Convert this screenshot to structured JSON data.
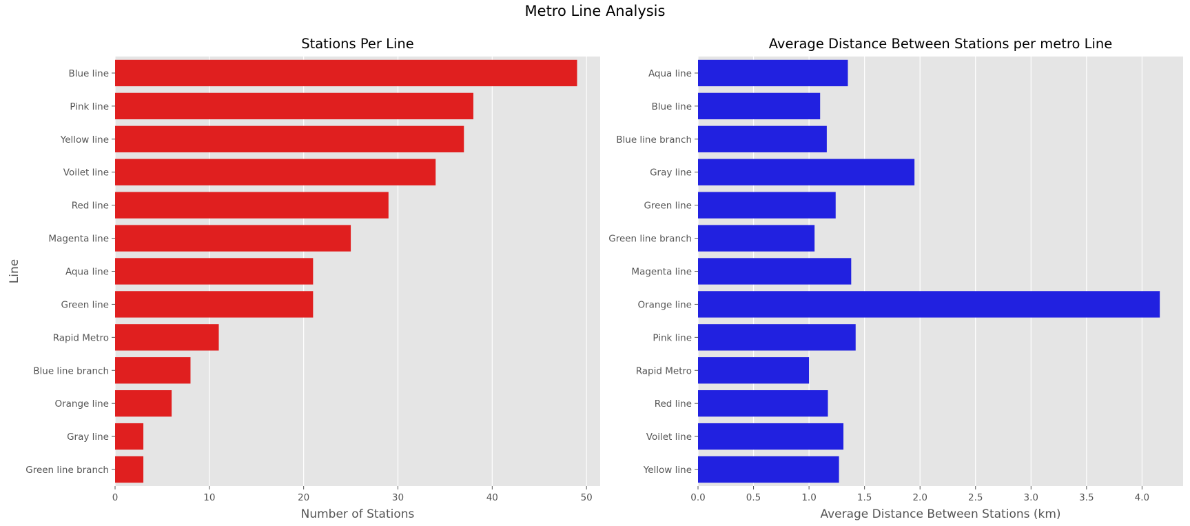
{
  "figure": {
    "title": "Metro Line Analysis",
    "background": "#ffffff",
    "axes_facecolor": "#e5e5e5",
    "grid_color": "#ffffff",
    "tick_color": "#555555",
    "label_color": "#555555"
  },
  "chart_data": [
    {
      "type": "bar",
      "orientation": "horizontal",
      "title": "Stations Per Line",
      "xlabel": "Number of Stations",
      "ylabel": "Line",
      "color": "#e01f1f",
      "categories": [
        "Blue line",
        "Pink line",
        "Yellow line",
        "Voilet line",
        "Red line",
        "Magenta line",
        "Aqua line",
        "Green line",
        "Rapid Metro",
        "Blue line branch",
        "Orange line",
        "Gray line",
        "Green line branch"
      ],
      "values": [
        49,
        38,
        37,
        34,
        29,
        25,
        21,
        21,
        11,
        8,
        6,
        3,
        3
      ],
      "xlim": [
        0,
        51.45
      ],
      "xticks": [
        0,
        10,
        20,
        30,
        40,
        50
      ],
      "xtick_labels": [
        "0",
        "10",
        "20",
        "30",
        "40",
        "50"
      ],
      "grid": true
    },
    {
      "type": "bar",
      "orientation": "horizontal",
      "title": "Average Distance Between Stations per metro Line",
      "xlabel": "Average Distance Between Stations (km)",
      "ylabel": "",
      "color": "#2121e0",
      "categories": [
        "Aqua line",
        "Blue line",
        "Blue line branch",
        "Gray line",
        "Green line",
        "Green line branch",
        "Magenta line",
        "Orange line",
        "Pink line",
        "Rapid Metro",
        "Red line",
        "Voilet line",
        "Yellow line"
      ],
      "values": [
        1.35,
        1.1,
        1.16,
        1.95,
        1.24,
        1.05,
        1.38,
        4.16,
        1.42,
        1.0,
        1.17,
        1.31,
        1.27
      ],
      "xlim": [
        0,
        4.37
      ],
      "xticks": [
        0,
        0.5,
        1,
        1.5,
        2,
        2.5,
        3,
        3.5,
        4
      ],
      "xtick_labels": [
        "0.0",
        "0.5",
        "1.0",
        "1.5",
        "2.0",
        "2.5",
        "3.0",
        "3.5",
        "4.0"
      ],
      "grid": true
    }
  ]
}
